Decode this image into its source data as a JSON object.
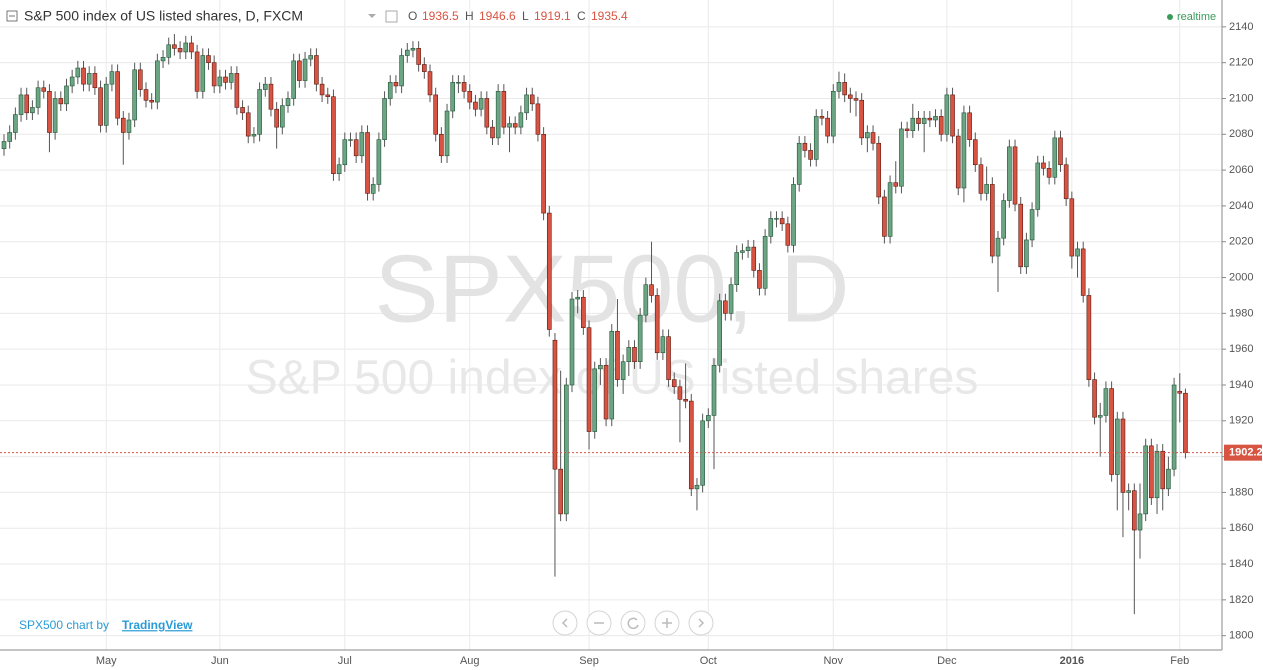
{
  "chart_data": {
    "type": "candlestick",
    "title": "S&P 500 index of US listed shares, D, FXCM",
    "ohlc_labels": [
      "O",
      "H",
      "L",
      "C"
    ],
    "status": "realtime",
    "watermark": "SPX500, D",
    "watermark_subtitle": "S&P 500 index of US listed shares",
    "credit": "SPX500 chart by",
    "credit_link": "TradingView",
    "up_color": "#6ba583",
    "down_color": "#d75442",
    "grid": true,
    "ylim": [
      1792,
      2155
    ],
    "yticks": [
      1800,
      1820,
      1840,
      1860,
      1880,
      1900,
      1920,
      1940,
      1960,
      1980,
      2000,
      2020,
      2040,
      2060,
      2080,
      2100,
      2120,
      2140
    ],
    "categories": [
      null,
      null,
      null,
      null,
      null,
      null,
      null,
      null,
      null,
      null,
      null,
      null,
      null,
      null,
      null,
      null,
      null,
      null,
      "May",
      null,
      null,
      null,
      null,
      null,
      null,
      null,
      null,
      null,
      null,
      null,
      null,
      null,
      null,
      null,
      null,
      null,
      null,
      null,
      "Jun",
      null,
      null,
      null,
      null,
      null,
      null,
      null,
      null,
      null,
      null,
      null,
      null,
      null,
      null,
      null,
      null,
      null,
      null,
      null,
      null,
      null,
      "Jul",
      null,
      null,
      null,
      null,
      null,
      null,
      null,
      null,
      null,
      null,
      null,
      null,
      null,
      null,
      null,
      null,
      null,
      null,
      null,
      null,
      null,
      "Aug",
      null,
      null,
      null,
      null,
      null,
      null,
      null,
      null,
      null,
      null,
      null,
      null,
      null,
      null,
      null,
      null,
      null,
      null,
      null,
      null,
      "Sep",
      null,
      null,
      null,
      null,
      null,
      null,
      null,
      null,
      null,
      null,
      null,
      null,
      null,
      null,
      null,
      null,
      null,
      null,
      null,
      null,
      "Oct",
      null,
      null,
      null,
      null,
      null,
      null,
      null,
      null,
      null,
      null,
      null,
      null,
      null,
      null,
      null,
      null,
      null,
      null,
      null,
      null,
      null,
      "Nov",
      null,
      null,
      null,
      null,
      null,
      null,
      null,
      null,
      null,
      null,
      null,
      null,
      null,
      null,
      null,
      null,
      null,
      null,
      null,
      "Dec",
      null,
      null,
      null,
      null,
      null,
      null,
      null,
      null,
      null,
      null,
      null,
      null,
      null,
      null,
      null,
      null,
      null,
      null,
      null,
      null,
      null,
      "2016",
      null,
      null,
      null,
      null,
      null,
      null,
      null,
      null,
      null,
      null,
      null,
      null,
      null,
      null,
      null,
      null,
      null,
      null,
      "Feb",
      null
    ],
    "open": [
      2072,
      2076,
      2081,
      2091,
      2102,
      2092,
      2095,
      2106,
      2104,
      2081,
      2100,
      2097,
      2107,
      2112,
      2117,
      2108,
      2114,
      2106,
      2085,
      2108,
      2115,
      2089,
      2081,
      2088,
      2116,
      2105,
      2099,
      2098,
      2121,
      2123,
      2130,
      2128,
      2126,
      2131,
      2126,
      2104,
      2124,
      2120,
      2107,
      2112,
      2109,
      2114,
      2095,
      2092,
      2079,
      2080,
      2105,
      2108,
      2094,
      2084,
      2096,
      2100,
      2121,
      2110,
      2122,
      2124,
      2108,
      2102,
      2101,
      2058,
      2063,
      2077,
      2077,
      2068,
      2081,
      2047,
      2052,
      2077,
      2100,
      2109,
      2107,
      2124,
      2127,
      2128,
      2119,
      2115,
      2102,
      2080,
      2068,
      2093,
      2109,
      2109,
      2104,
      2098,
      2094,
      2100,
      2084,
      2078,
      2104,
      2084,
      2086,
      2084,
      2092,
      2102,
      2097,
      2080,
      2036,
      1965,
      1893,
      1868,
      1940,
      1988,
      1989,
      1972,
      1914,
      1949,
      1951,
      1921,
      1970,
      1943,
      1953,
      1961,
      1953,
      1979,
      1996,
      1990,
      1958,
      1967,
      1943,
      1939,
      1932,
      1931,
      1882,
      1884,
      1920,
      1923,
      1951,
      1987,
      1980,
      1996,
      2014,
      2015,
      2017,
      2004,
      1994,
      2023,
      2033,
      2033,
      2030,
      2018,
      2052,
      2075,
      2071,
      2066,
      2090,
      2089,
      2079,
      2104,
      2109,
      2102,
      2100,
      2099,
      2078,
      2081,
      2075,
      2045,
      2023,
      2053,
      2051,
      2083,
      2082,
      2089,
      2086,
      2089,
      2088,
      2090,
      2080,
      2102,
      2079,
      2050,
      2092,
      2077,
      2063,
      2047,
      2052,
      2012,
      2022,
      2043,
      2073,
      2041,
      2006,
      2021,
      2038,
      2064,
      2061,
      2056,
      2078,
      2063,
      2044,
      2012,
      2016,
      1990,
      1943,
      1922,
      1923,
      1938,
      1890,
      1921,
      1880,
      1881,
      1859,
      1868,
      1906,
      1877,
      1903,
      1882,
      1893,
      1936.5,
      1935.4
    ],
    "high": [
      2080,
      2085,
      2095,
      2106,
      2106,
      2099,
      2110,
      2110,
      2108,
      2104,
      2104,
      2111,
      2116,
      2121,
      2121,
      2118,
      2118,
      2110,
      2112,
      2119,
      2119,
      2093,
      2092,
      2120,
      2120,
      2109,
      2103,
      2125,
      2127,
      2134,
      2136,
      2132,
      2135,
      2135,
      2130,
      2128,
      2128,
      2124,
      2116,
      2116,
      2118,
      2118,
      2099,
      2096,
      2084,
      2109,
      2112,
      2112,
      2098,
      2100,
      2104,
      2125,
      2125,
      2126,
      2128,
      2128,
      2112,
      2106,
      2105,
      2067,
      2081,
      2081,
      2081,
      2085,
      2085,
      2056,
      2081,
      2104,
      2113,
      2113,
      2128,
      2131,
      2132,
      2132,
      2123,
      2119,
      2106,
      2084,
      2097,
      2113,
      2113,
      2113,
      2108,
      2102,
      2104,
      2104,
      2088,
      2108,
      2108,
      2090,
      2090,
      2096,
      2106,
      2106,
      2101,
      2084,
      2040,
      1969,
      1948,
      1944,
      1992,
      1993,
      1993,
      1976,
      1953,
      1955,
      1955,
      1974,
      1988,
      1957,
      1965,
      1965,
      1983,
      2000,
      2020,
      1994,
      1971,
      1971,
      1947,
      1943,
      1952,
      1935,
      1888,
      1924,
      1927,
      1955,
      1991,
      1991,
      2000,
      2018,
      2019,
      2021,
      2021,
      2008,
      2027,
      2037,
      2037,
      2037,
      2034,
      2056,
      2079,
      2079,
      2075,
      2094,
      2094,
      2093,
      2108,
      2115,
      2114,
      2106,
      2104,
      2103,
      2085,
      2085,
      2079,
      2049,
      2057,
      2065,
      2087,
      2087,
      2097,
      2093,
      2093,
      2093,
      2094,
      2094,
      2106,
      2106,
      2083,
      2096,
      2096,
      2081,
      2067,
      2062,
      2056,
      2026,
      2047,
      2077,
      2077,
      2045,
      2025,
      2042,
      2068,
      2068,
      2065,
      2082,
      2082,
      2067,
      2048,
      2020,
      2020,
      1994,
      1947,
      1930,
      1942,
      1942,
      1925,
      1925,
      1885,
      1885,
      1885,
      1910,
      1910,
      1907,
      1907,
      1900,
      1944,
      1946.6,
      1938
    ],
    "low": [
      2068,
      2072,
      2077,
      2087,
      2088,
      2088,
      2091,
      2100,
      2070,
      2077,
      2093,
      2093,
      2103,
      2108,
      2104,
      2104,
      2102,
      2081,
      2081,
      2104,
      2085,
      2063,
      2077,
      2084,
      2101,
      2095,
      2094,
      2094,
      2117,
      2119,
      2124,
      2122,
      2122,
      2122,
      2100,
      2100,
      2116,
      2103,
      2103,
      2105,
      2105,
      2091,
      2088,
      2075,
      2075,
      2076,
      2101,
      2090,
      2072,
      2080,
      2092,
      2096,
      2106,
      2106,
      2118,
      2104,
      2098,
      2097,
      2054,
      2054,
      2059,
      2073,
      2064,
      2064,
      2043,
      2043,
      2048,
      2073,
      2096,
      2103,
      2103,
      2120,
      2123,
      2115,
      2111,
      2098,
      2076,
      2064,
      2064,
      2089,
      2103,
      2100,
      2094,
      2090,
      2090,
      2080,
      2074,
      2074,
      2080,
      2070,
      2080,
      2080,
      2088,
      2093,
      2076,
      2032,
      1967,
      1833,
      1864,
      1864,
      1936,
      1980,
      1968,
      1904,
      1910,
      1940,
      1917,
      1917,
      1939,
      1935,
      1945,
      1949,
      1949,
      1975,
      1986,
      1954,
      1954,
      1939,
      1935,
      1908,
      1927,
      1878,
      1870,
      1880,
      1916,
      1893,
      1947,
      1976,
      1976,
      1992,
      2010,
      2011,
      2000,
      1990,
      1990,
      2019,
      2028,
      2026,
      2014,
      2014,
      2048,
      2067,
      2062,
      2062,
      2085,
      2075,
      2075,
      2100,
      2098,
      2092,
      2090,
      2074,
      2070,
      2071,
      2041,
      2019,
      2019,
      2047,
      2047,
      2078,
      2078,
      2082,
      2070,
      2084,
      2084,
      2076,
      2076,
      2075,
      2046,
      2042,
      2073,
      2059,
      2043,
      2043,
      2008,
      1992,
      2018,
      2039,
      2037,
      2002,
      2002,
      2017,
      2034,
      2057,
      2052,
      2052,
      2059,
      2040,
      2005,
      2000,
      1986,
      1939,
      1918,
      1900,
      1919,
      1886,
      1870,
      1855,
      1870,
      1812,
      1843,
      1864,
      1873,
      1868,
      1870,
      1878,
      1889,
      1919.1,
      1899
    ],
    "close": [
      2076,
      2081,
      2091,
      2102,
      2092,
      2095,
      2106,
      2104,
      2081,
      2100,
      2097,
      2107,
      2112,
      2117,
      2108,
      2114,
      2106,
      2085,
      2108,
      2115,
      2089,
      2081,
      2088,
      2116,
      2105,
      2099,
      2098,
      2121,
      2123,
      2130,
      2128,
      2126,
      2131,
      2126,
      2104,
      2124,
      2120,
      2107,
      2112,
      2109,
      2114,
      2095,
      2092,
      2079,
      2080,
      2105,
      2108,
      2094,
      2084,
      2096,
      2100,
      2121,
      2110,
      2122,
      2124,
      2108,
      2102,
      2101,
      2058,
      2063,
      2077,
      2077,
      2068,
      2081,
      2047,
      2052,
      2077,
      2100,
      2109,
      2107,
      2124,
      2127,
      2128,
      2119,
      2115,
      2102,
      2080,
      2068,
      2093,
      2109,
      2109,
      2104,
      2098,
      2094,
      2100,
      2084,
      2078,
      2104,
      2084,
      2086,
      2084,
      2092,
      2102,
      2097,
      2080,
      2036,
      1971,
      1893,
      1868,
      1940,
      1988,
      1989,
      1972,
      1914,
      1949,
      1951,
      1921,
      1970,
      1943,
      1953,
      1961,
      1953,
      1979,
      1996,
      1990,
      1958,
      1967,
      1943,
      1939,
      1932,
      1931,
      1882,
      1884,
      1920,
      1923,
      1951,
      1987,
      1980,
      1996,
      2014,
      2015,
      2017,
      2004,
      1994,
      2023,
      2033,
      2033,
      2030,
      2018,
      2052,
      2075,
      2071,
      2066,
      2090,
      2089,
      2079,
      2104,
      2109,
      2102,
      2100,
      2099,
      2078,
      2081,
      2075,
      2045,
      2023,
      2053,
      2051,
      2083,
      2082,
      2089,
      2086,
      2089,
      2088,
      2090,
      2080,
      2102,
      2079,
      2050,
      2092,
      2077,
      2063,
      2047,
      2052,
      2012,
      2022,
      2043,
      2073,
      2041,
      2006,
      2021,
      2038,
      2064,
      2061,
      2056,
      2078,
      2063,
      2044,
      2012,
      2016,
      1990,
      1943,
      1922,
      1923,
      1938,
      1890,
      1921,
      1880,
      1881,
      1859,
      1868,
      1906,
      1877,
      1903,
      1882,
      1893,
      1940,
      1935.4,
      1902.2
    ]
  }
}
